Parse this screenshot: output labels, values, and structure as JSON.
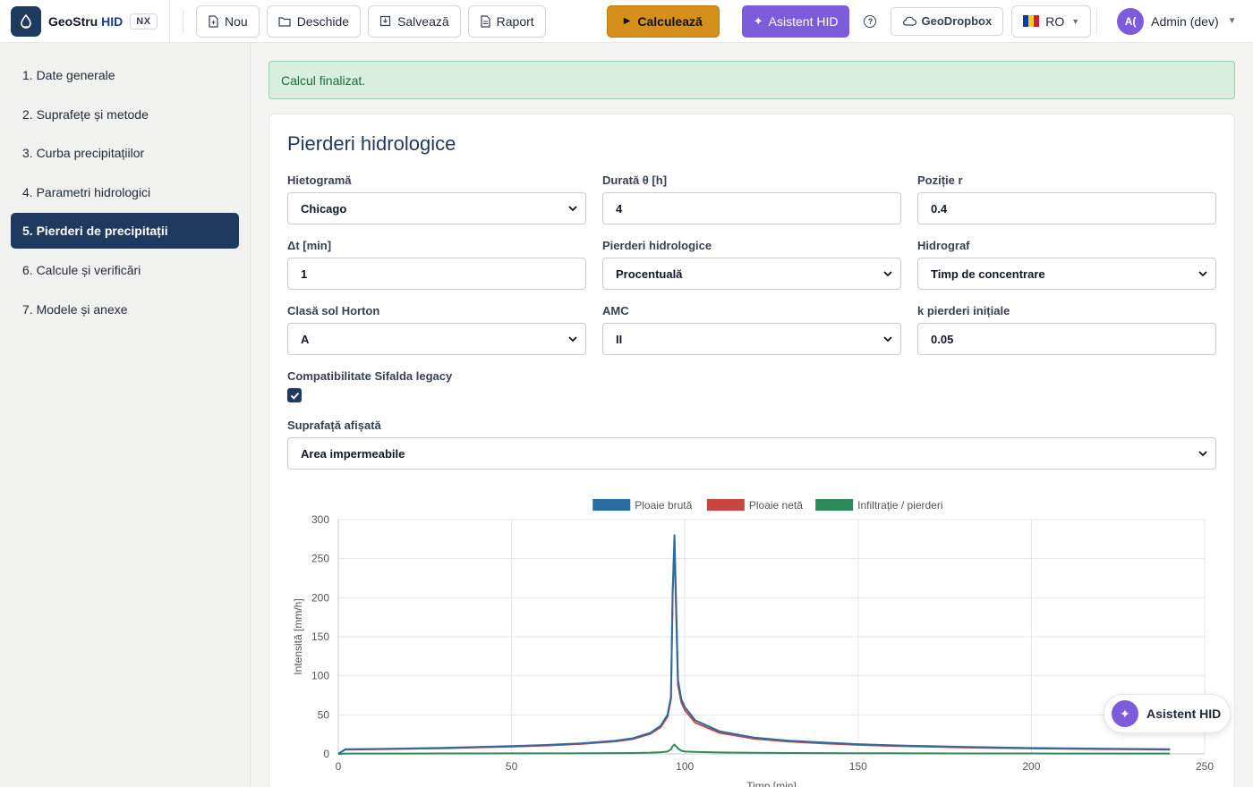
{
  "brand": {
    "name": "GeoStru",
    "name_accent": "HID",
    "tag": "NX"
  },
  "toolbar": {
    "new_label": "Nou",
    "open_label": "Deschide",
    "save_label": "Salvează",
    "report_label": "Raport",
    "calculate_label": "Calculează",
    "assistant_label": "Asistent HID",
    "help_label": "?",
    "geodropbox_label": "GeoDropbox",
    "language_label": "RO",
    "user_initials": "A(",
    "user_name": "Admin (dev)"
  },
  "sidebar": {
    "items": [
      {
        "label": "1. Date generale",
        "active": false
      },
      {
        "label": "2. Suprafețe și metode",
        "active": false
      },
      {
        "label": "3. Curba precipitațiilor",
        "active": false
      },
      {
        "label": "4. Parametri hidrologici",
        "active": false
      },
      {
        "label": "5. Pierderi de precipitații",
        "active": true
      },
      {
        "label": "6. Calcule și verificări",
        "active": false
      },
      {
        "label": "7. Modele și anexe",
        "active": false
      }
    ]
  },
  "alert": {
    "message": "Calcul finalizat."
  },
  "form": {
    "title": "Pierderi hidrologice",
    "hietograma_label": "Hietogramă",
    "hietograma_value": "Chicago",
    "durata_label": "Durată θ [h]",
    "durata_value": "4",
    "pozitie_label": "Poziție r",
    "pozitie_value": "0.4",
    "dt_label": "Δt [min]",
    "dt_value": "1",
    "pierderi_label": "Pierderi hidrologice",
    "pierderi_value": "Procentuală",
    "hidrograf_label": "Hidrograf",
    "hidrograf_value": "Timp de concentrare",
    "clasa_label": "Clasă sol Horton",
    "clasa_value": "A",
    "amc_label": "AMC",
    "amc_value": "II",
    "k_label": "k pierderi inițiale",
    "k_value": "0.05",
    "compat_label": "Compatibilitate Sifalda legacy",
    "compat_checked": true,
    "suprafata_label": "Suprafață afișată",
    "suprafata_value": "Area impermeabile"
  },
  "chart_data": {
    "type": "line",
    "legend_position": "top",
    "grid": true,
    "xlabel": "Timp [min]",
    "ylabel": "Intensită [mm/h]",
    "xlim": [
      0,
      250
    ],
    "ylim": [
      0,
      300
    ],
    "xticks": [
      0,
      50,
      100,
      150,
      200,
      250
    ],
    "yticks": [
      0,
      50,
      100,
      150,
      200,
      250,
      300
    ],
    "x": [
      0,
      2,
      10,
      20,
      30,
      40,
      50,
      60,
      70,
      80,
      85,
      90,
      93,
      95,
      96,
      96.5,
      97,
      98,
      99,
      100,
      103,
      110,
      120,
      130,
      140,
      150,
      160,
      170,
      180,
      190,
      200,
      210,
      220,
      230,
      240
    ],
    "series": [
      {
        "name": "Ploaie brută",
        "color": "#2b6ca3",
        "values": [
          0,
          6,
          6.3,
          7,
          7.8,
          8.8,
          10,
          11.5,
          13.5,
          17,
          20,
          27,
          36,
          50,
          73,
          210,
          280,
          95,
          70,
          60,
          43,
          29,
          21,
          17,
          14.5,
          12.5,
          11,
          10,
          9,
          8.2,
          7.6,
          7.1,
          6.7,
          6.3,
          6
        ]
      },
      {
        "name": "Ploaie netă",
        "color": "#c9453f",
        "values": [
          0,
          5.5,
          5.8,
          6.5,
          7.2,
          8.2,
          9.3,
          10.8,
          12.7,
          16,
          19,
          25.5,
          34,
          47.5,
          70,
          205,
          268,
          88,
          66,
          56,
          40,
          27,
          19.5,
          15.8,
          13.5,
          11.6,
          10.2,
          9.3,
          8.4,
          7.6,
          7,
          6.6,
          6.2,
          5.8,
          5.5
        ]
      },
      {
        "name": "Infiltrație / pierderi",
        "color": "#2e8a5b",
        "values": [
          0,
          0.5,
          0.5,
          0.5,
          0.6,
          0.6,
          0.7,
          0.7,
          0.8,
          1,
          1.2,
          1.6,
          2.2,
          3,
          6,
          10,
          12,
          7,
          4,
          3,
          2.5,
          1.8,
          1.4,
          1.2,
          1,
          0.9,
          0.8,
          0.7,
          0.6,
          0.6,
          0.6,
          0.5,
          0.5,
          0.5,
          0.5
        ]
      }
    ]
  },
  "fab": {
    "label": "Asistent HID"
  }
}
